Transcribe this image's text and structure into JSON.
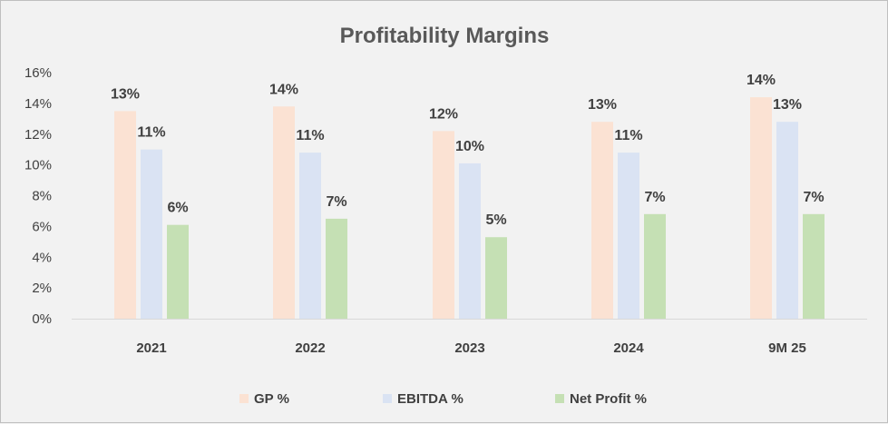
{
  "chart_data": {
    "type": "bar",
    "title": "Profitability Margins",
    "categories": [
      "2021",
      "2022",
      "2023",
      "2024",
      "9M 25"
    ],
    "series": [
      {
        "name": "GP %",
        "color": "#fbe2d3",
        "values": [
          13.5,
          13.8,
          12.2,
          12.8,
          14.4
        ],
        "labels": [
          "13%",
          "14%",
          "12%",
          "13%",
          "14%"
        ]
      },
      {
        "name": "EBITDA %",
        "color": "#dae3f3",
        "values": [
          11.0,
          10.8,
          10.1,
          10.8,
          12.8
        ],
        "labels": [
          "11%",
          "11%",
          "10%",
          "11%",
          "13%"
        ]
      },
      {
        "name": "Net Profit %",
        "color": "#c5e0b4",
        "values": [
          6.1,
          6.5,
          5.3,
          6.8,
          6.8
        ],
        "labels": [
          "6%",
          "7%",
          "5%",
          "7%",
          "7%"
        ]
      }
    ],
    "yticks": [
      "0%",
      "2%",
      "4%",
      "6%",
      "8%",
      "10%",
      "12%",
      "14%",
      "16%"
    ],
    "ylim": [
      0,
      16
    ],
    "grid": false,
    "legend": "bottom"
  }
}
